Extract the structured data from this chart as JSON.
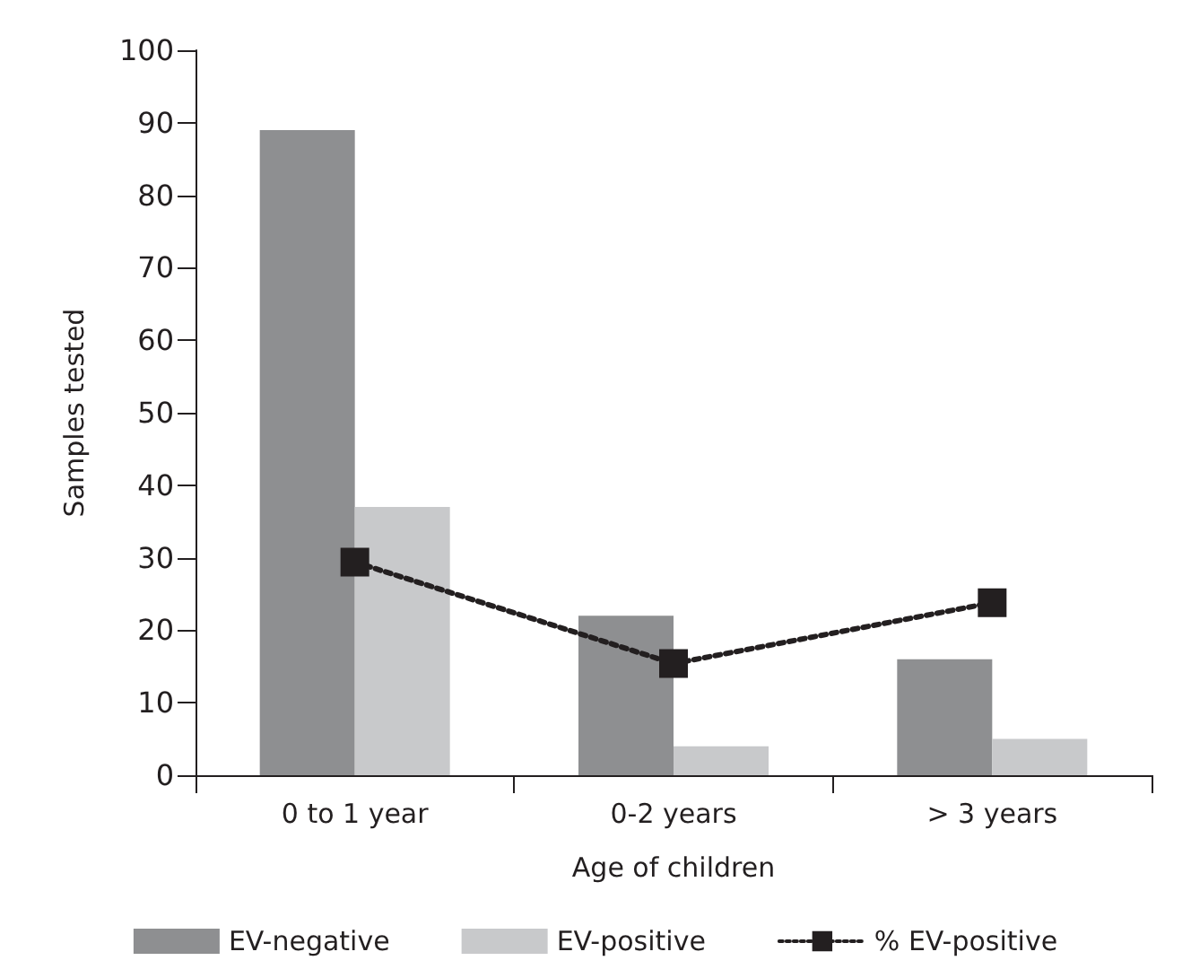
{
  "chart_data": {
    "type": "bar",
    "xlabel": "Age of children",
    "ylabel": "Samples tested",
    "categories": [
      "0 to 1 year",
      "0-2 years",
      "> 3 years"
    ],
    "series": [
      {
        "name": "EV-negative",
        "color": "#8e8f91",
        "values": [
          89,
          22,
          16
        ]
      },
      {
        "name": "EV-positive",
        "color": "#c8c9cb",
        "values": [
          37,
          4,
          5
        ]
      },
      {
        "name": "% EV-positive",
        "type": "line",
        "color": "#231f20",
        "values": [
          29.4,
          15.4,
          23.8
        ],
        "marker": "square",
        "line_style": "dotted"
      }
    ],
    "ylim": [
      0,
      100
    ],
    "yticks": [
      0,
      10,
      20,
      30,
      40,
      50,
      60,
      70,
      80,
      90,
      100
    ],
    "grid": false,
    "legend": "bottom"
  }
}
